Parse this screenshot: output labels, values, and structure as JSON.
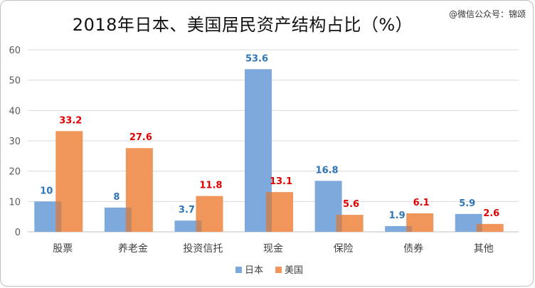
{
  "watermark": "@微信公众号：锦颂",
  "chart_data": {
    "type": "bar",
    "title": "2018年日本、美国居民资产结构占比（%）",
    "categories": [
      "股票",
      "养老金",
      "投资信托",
      "现金",
      "保险",
      "债券",
      "其他"
    ],
    "series": [
      {
        "name": "日本",
        "color": "#7ea9dc",
        "values": [
          10,
          8,
          3.7,
          53.6,
          16.8,
          1.9,
          5.9
        ]
      },
      {
        "name": "美国",
        "color": "#f0965a",
        "values": [
          33.2,
          27.6,
          11.8,
          13.1,
          5.6,
          6.1,
          2.6
        ]
      }
    ],
    "ylim": [
      0,
      60
    ],
    "yticks": [
      0,
      10,
      20,
      30,
      40,
      50,
      60
    ],
    "grid": true,
    "legend": "bottom"
  }
}
